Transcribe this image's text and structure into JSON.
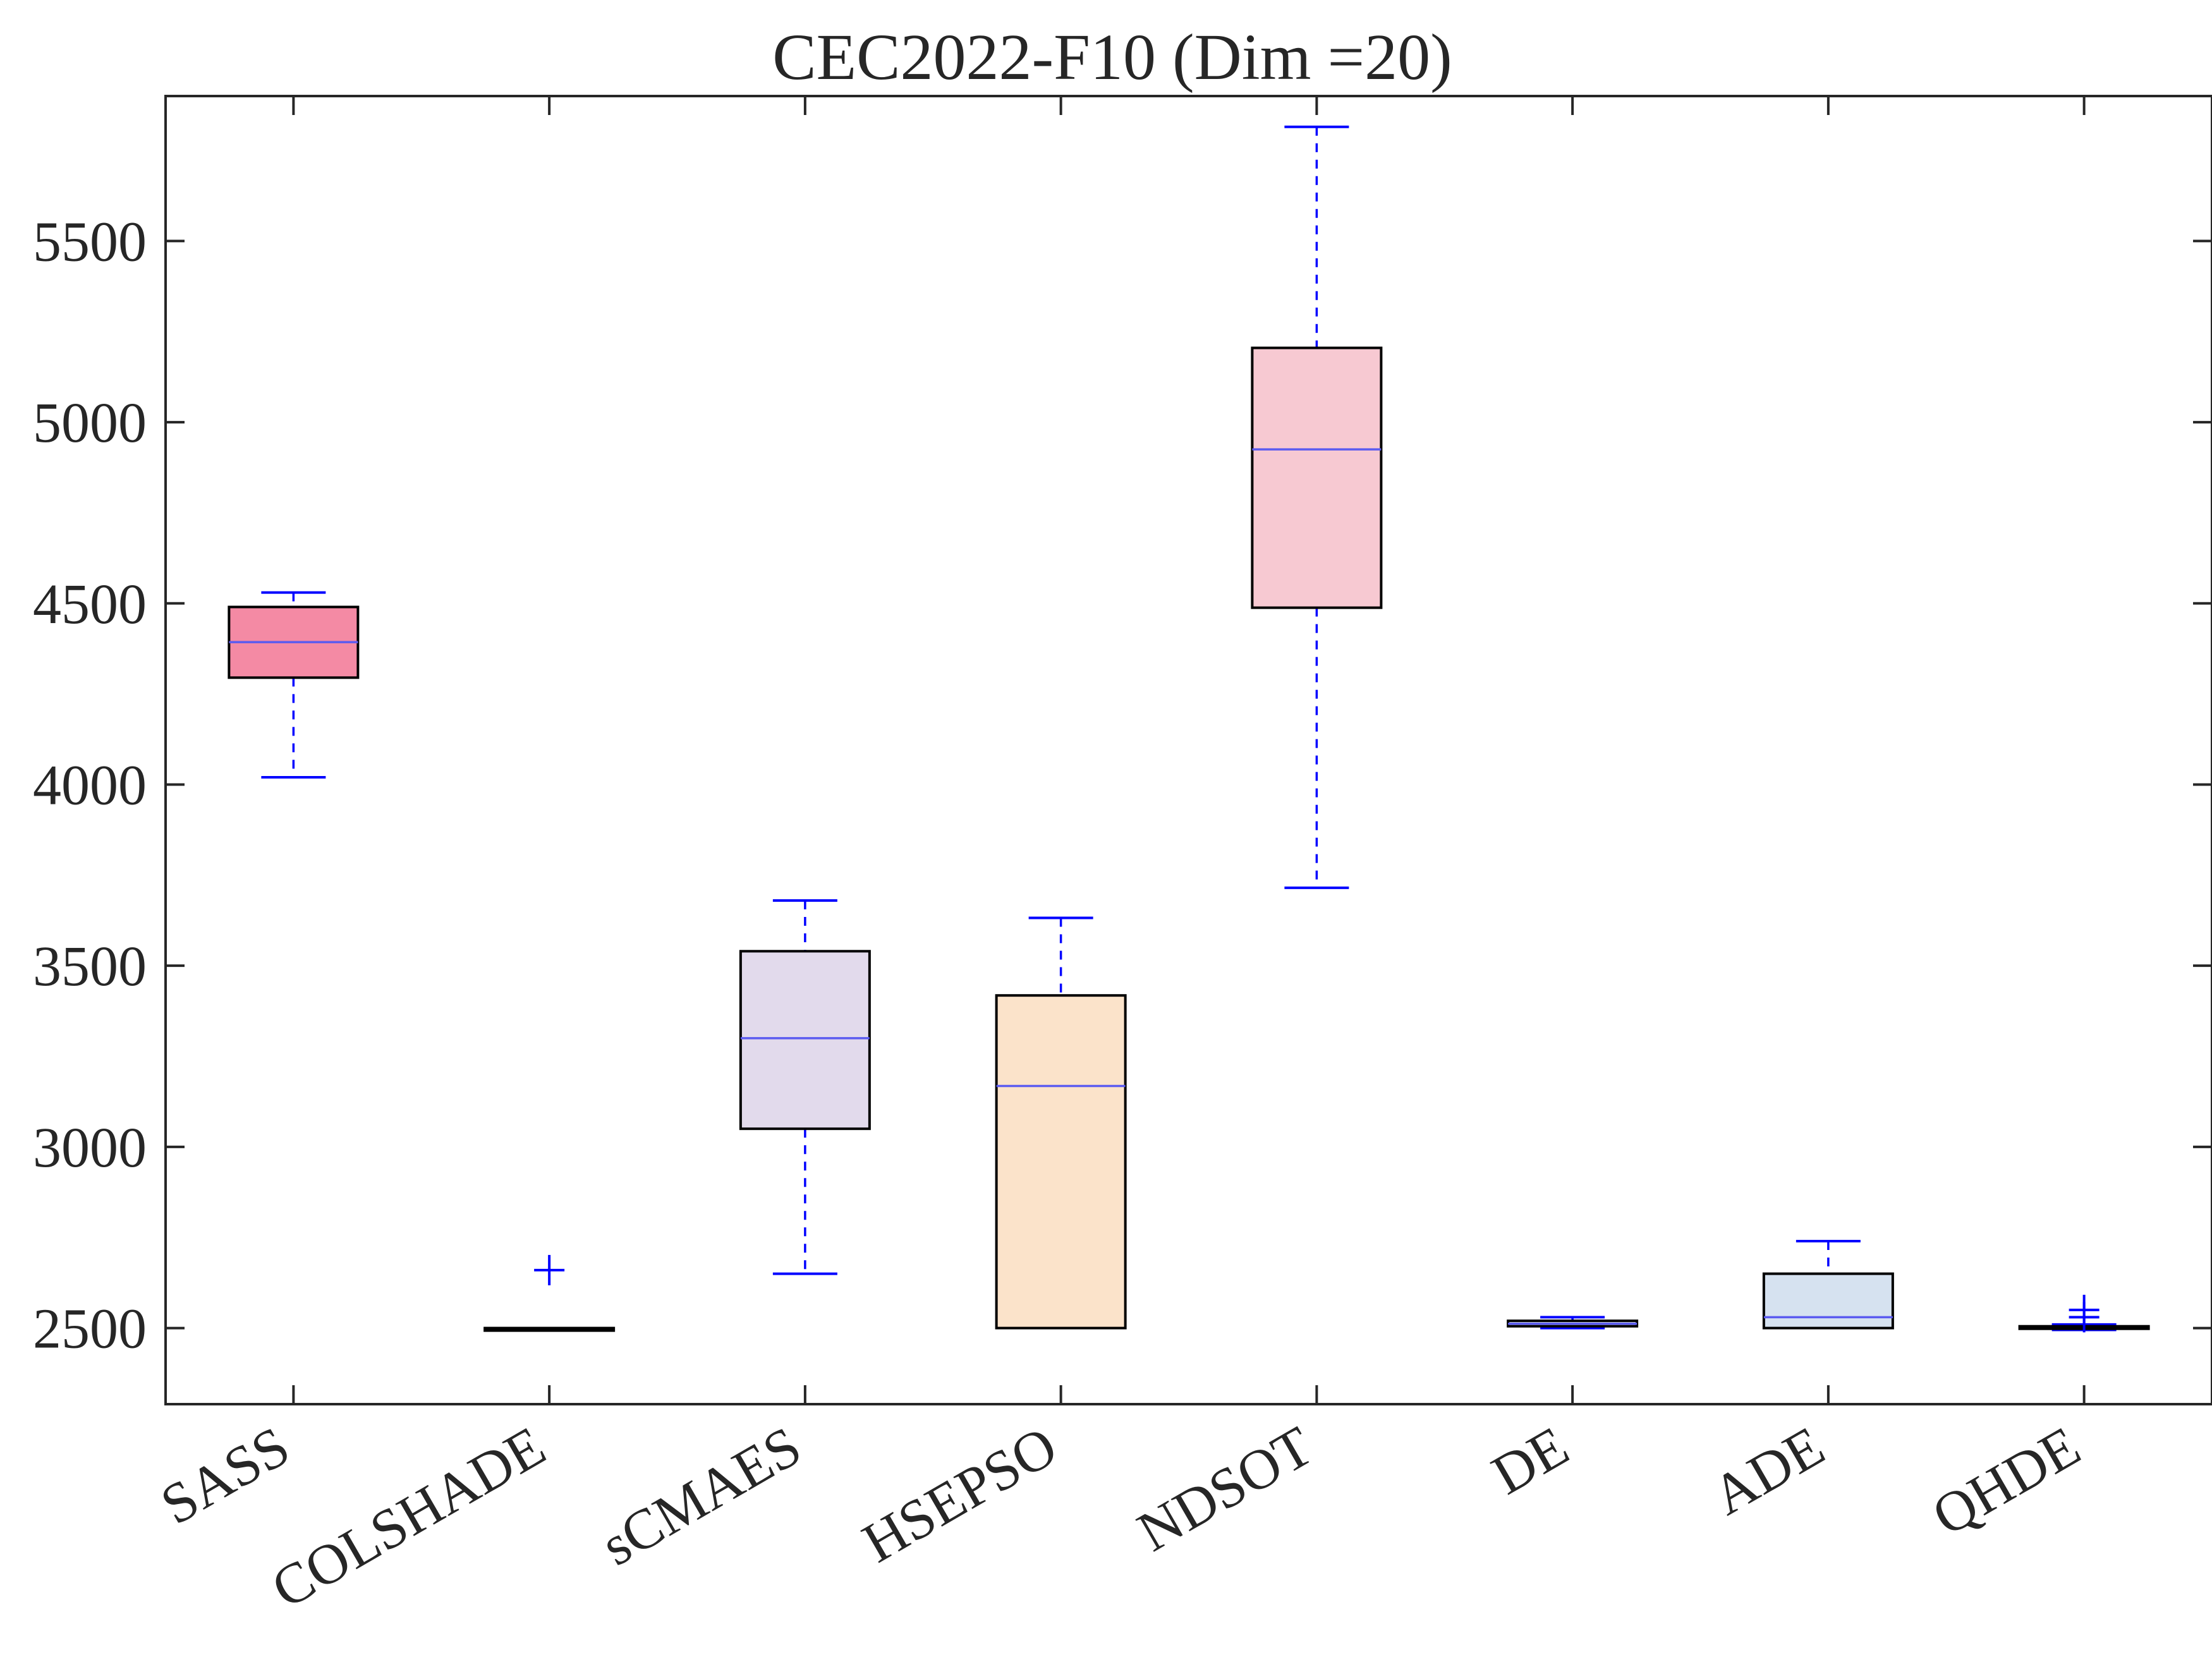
{
  "chart_data": {
    "type": "box",
    "title": "CEC2022-F10 (Dim =20)",
    "xlabel": "",
    "ylabel": "",
    "ylim": [
      2290,
      5900
    ],
    "yticks": [
      2500,
      3000,
      3500,
      4000,
      4500,
      5000,
      5500
    ],
    "ytick_labels": [
      "2500",
      "3000",
      "3500",
      "4000",
      "4500",
      "5000",
      "5500"
    ],
    "grid": false,
    "categories": [
      "SASS",
      "COLSHADE",
      "sCMAES",
      "HSEPSO",
      "NDSOT",
      "DE",
      "ADE",
      "QHDE"
    ],
    "series": [
      {
        "name": "SASS",
        "whisker_low": 4020,
        "q1": 4295,
        "median": 4393,
        "q3": 4490,
        "whisker_high": 4530,
        "outliers": [],
        "fill": "#f48aa4"
      },
      {
        "name": "COLSHADE",
        "whisker_low": 2500,
        "q1": 2500,
        "median": 2500,
        "q3": 2500,
        "whisker_high": 2500,
        "outliers": [
          2660
        ],
        "fill": "#f9e6dd"
      },
      {
        "name": "sCMAES",
        "whisker_low": 2650,
        "q1": 3050,
        "median": 3300,
        "q3": 3540,
        "whisker_high": 3680,
        "outliers": [],
        "fill": "#e2daec"
      },
      {
        "name": "HSEPSO",
        "whisker_low": 2500,
        "q1": 2500,
        "median": 3168,
        "q3": 3418,
        "whisker_high": 3632,
        "outliers": [],
        "fill": "#fbe3ca"
      },
      {
        "name": "NDSOT",
        "whisker_low": 3715,
        "q1": 4488,
        "median": 4925,
        "q3": 5205,
        "whisker_high": 5815,
        "outliers": [],
        "fill": "#f7c9d2"
      },
      {
        "name": "DE",
        "whisker_low": 2500,
        "q1": 2505,
        "median": 2512,
        "q3": 2520,
        "whisker_high": 2530,
        "outliers": [],
        "fill": "#dde8ee"
      },
      {
        "name": "ADE",
        "whisker_low": 2500,
        "q1": 2500,
        "median": 2530,
        "q3": 2650,
        "whisker_high": 2740,
        "outliers": [],
        "fill": "#d6e2f0"
      },
      {
        "name": "QHDE",
        "whisker_low": 2495,
        "q1": 2500,
        "median": 2503,
        "q3": 2505,
        "whisker_high": 2510,
        "outliers": [
          2550,
          2530
        ],
        "fill": "#d9ecd2"
      }
    ],
    "colors": {
      "axis": "#262626",
      "box_edge": "#000000",
      "median": "#5b5bf0",
      "whisker": "#0000ff",
      "outlier": "#0000ff"
    }
  }
}
